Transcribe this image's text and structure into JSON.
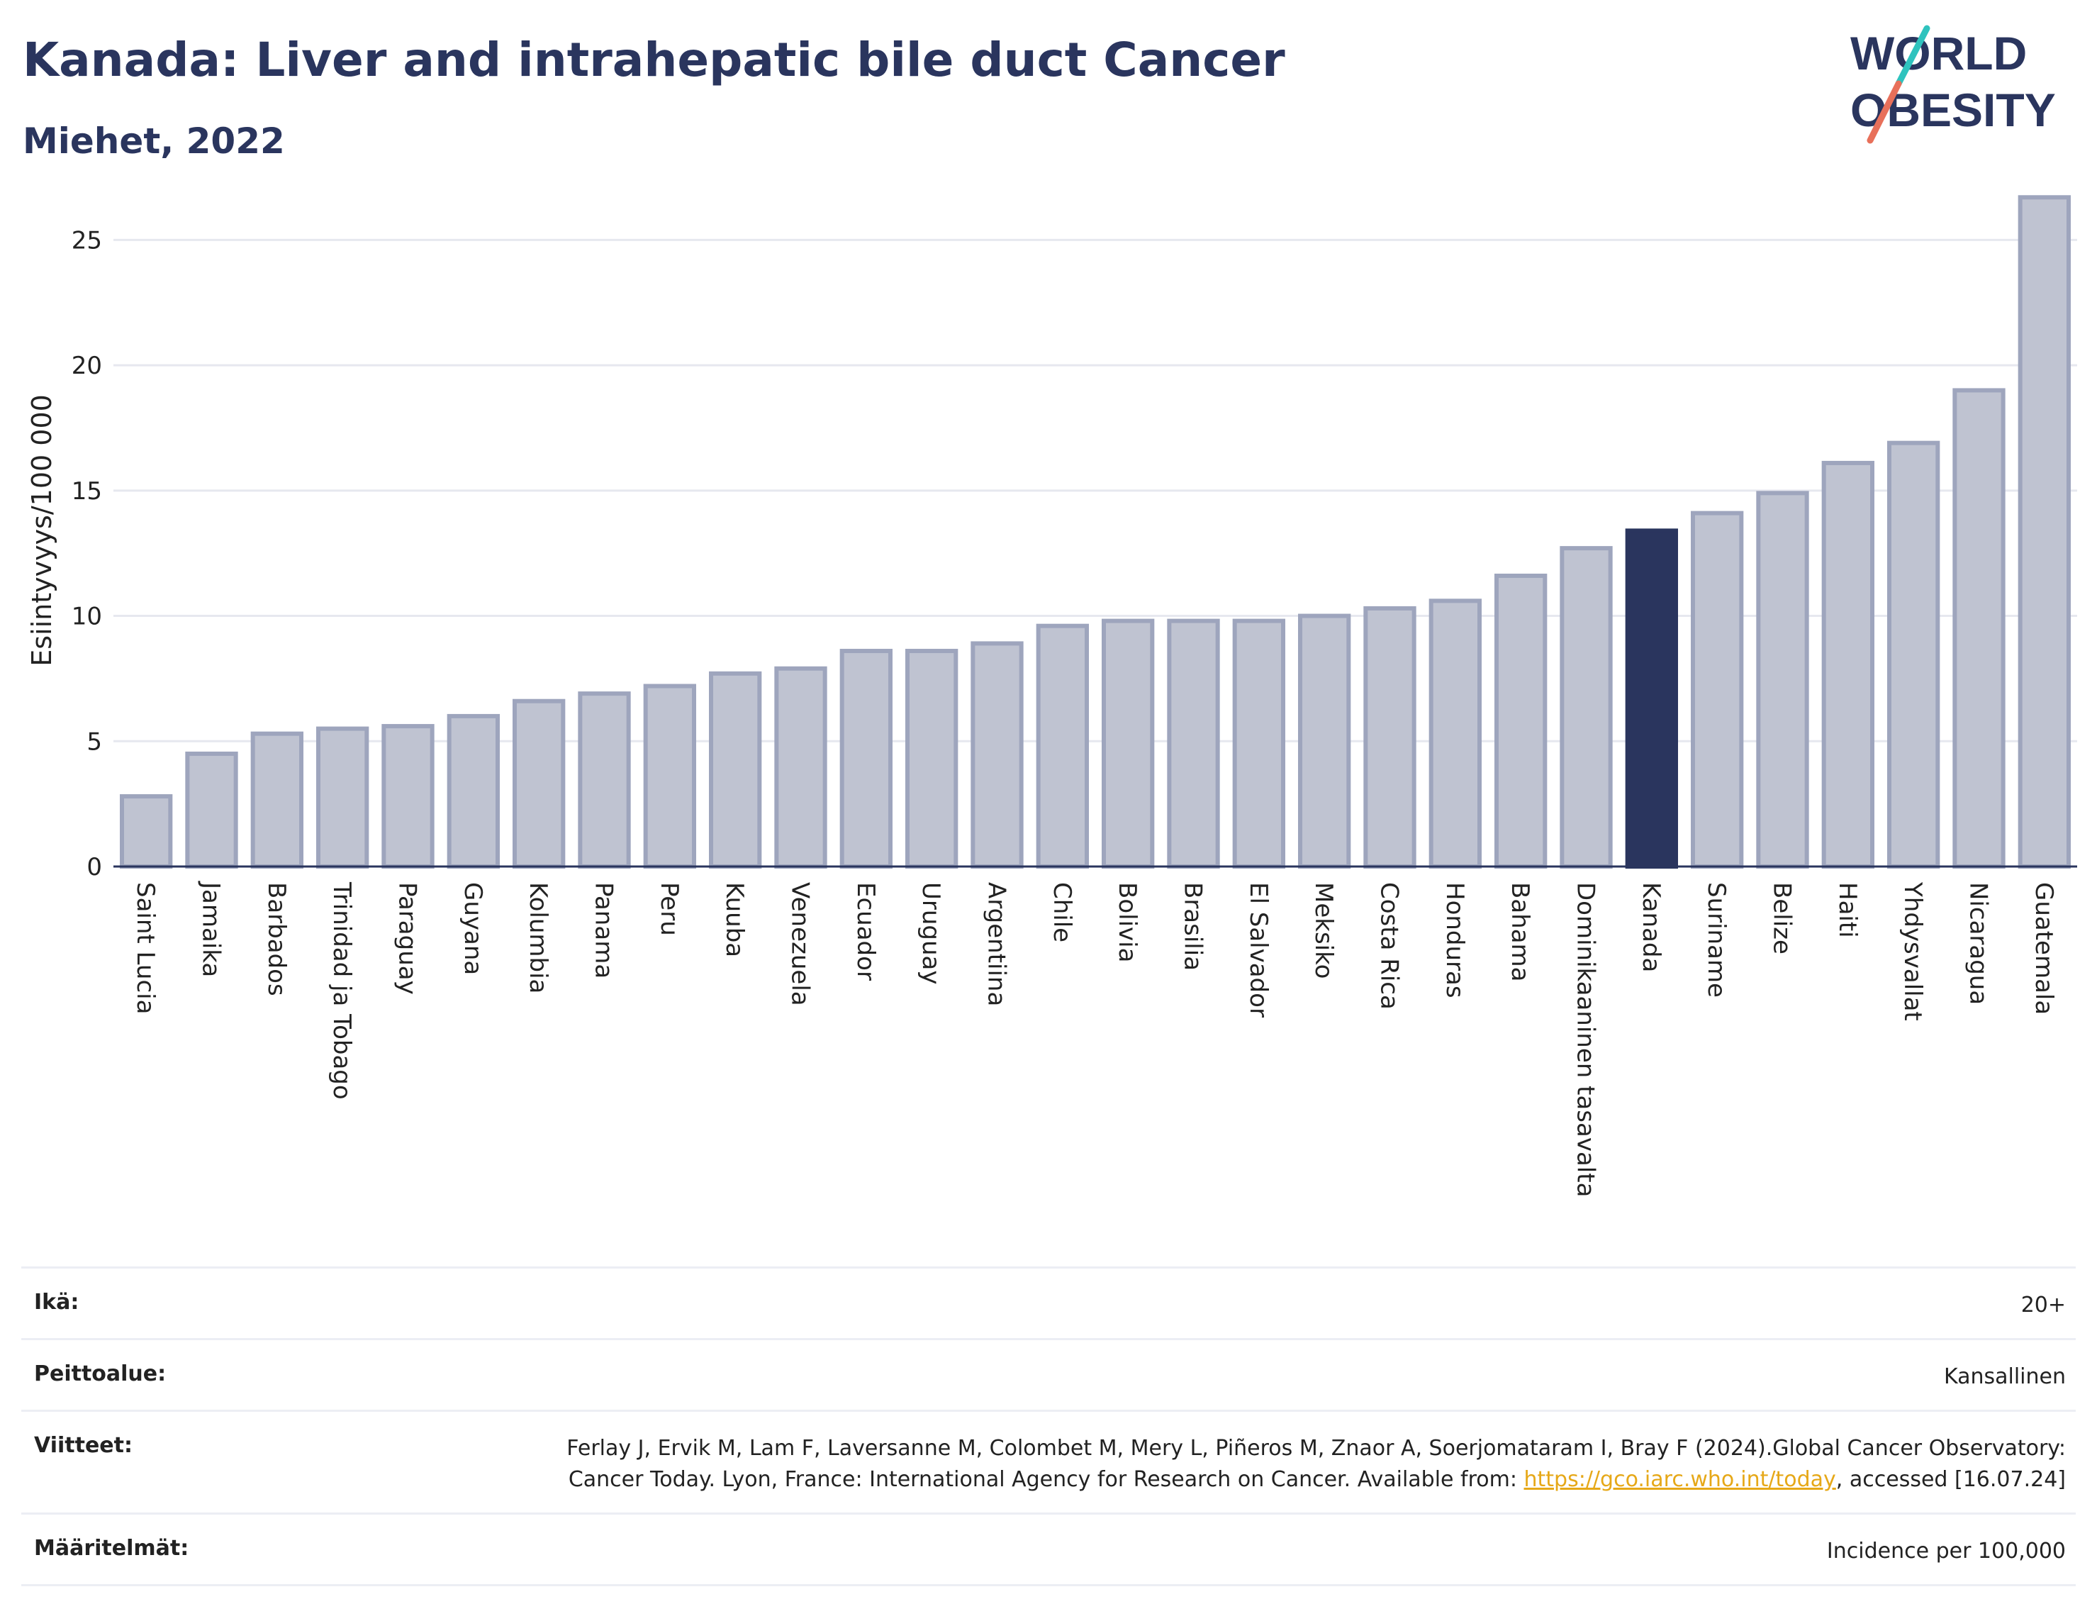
{
  "header": {
    "title": "Kanada: Liver and intrahepatic bile duct Cancer",
    "subtitle": "Miehet, 2022"
  },
  "logo": {
    "line1": "WORLD",
    "line2": "OBESITY",
    "accent_colors": [
      "#2fc3be",
      "#e8705a"
    ]
  },
  "colors": {
    "bar": "#bfc3d1",
    "bar_border": "#9ea5bd",
    "highlight": "#2a355e",
    "grid": "#e6e8ef",
    "axis": "#2a355e"
  },
  "chart_data": {
    "type": "bar",
    "ylabel": "Esiintyvyys/100 000",
    "ylim": [
      0,
      27.5
    ],
    "yticks": [
      0,
      5,
      10,
      15,
      20,
      25
    ],
    "grid": true,
    "highlight": "Kanada",
    "categories": [
      "Saint Lucia",
      "Jamaika",
      "Barbados",
      "Trinidad ja Tobago",
      "Paraguay",
      "Guyana",
      "Kolumbia",
      "Panama",
      "Peru",
      "Kuuba",
      "Venezuela",
      "Ecuador",
      "Uruguay",
      "Argentiina",
      "Chile",
      "Bolivia",
      "Brasilia",
      "El Salvador",
      "Meksiko",
      "Costa Rica",
      "Honduras",
      "Bahama",
      "Dominikaaninen tasavalta",
      "Kanada",
      "Suriname",
      "Belize",
      "Haiti",
      "Yhdysvallat",
      "Nicaragua",
      "Guatemala"
    ],
    "values": [
      2.8,
      4.5,
      5.3,
      5.5,
      5.6,
      6.0,
      6.6,
      6.9,
      7.2,
      7.7,
      7.9,
      8.6,
      8.6,
      8.9,
      9.6,
      9.8,
      9.8,
      9.8,
      10.0,
      10.3,
      10.6,
      11.6,
      12.7,
      13.4,
      14.1,
      14.9,
      16.1,
      16.9,
      19.0,
      26.7
    ]
  },
  "meta": {
    "age_label": "Ikä:",
    "age_value": "20+",
    "coverage_label": "Peittoalue:",
    "coverage_value": "Kansallinen",
    "references_label": "Viitteet:",
    "references_text_1": "Ferlay J, Ervik M, Lam F, Laversanne M, Colombet M, Mery L, Piñeros M, Znaor A, Soerjomataram I, Bray F (2024).Global Cancer Observatory: Cancer Today. Lyon, France: International Agency for Research on Cancer. Available from: ",
    "references_link": "https://gco.iarc.who.int/today",
    "references_text_2": ", accessed [16.07.24]",
    "definitions_label": "Määritelmät:",
    "definitions_value": "Incidence per 100,000"
  }
}
